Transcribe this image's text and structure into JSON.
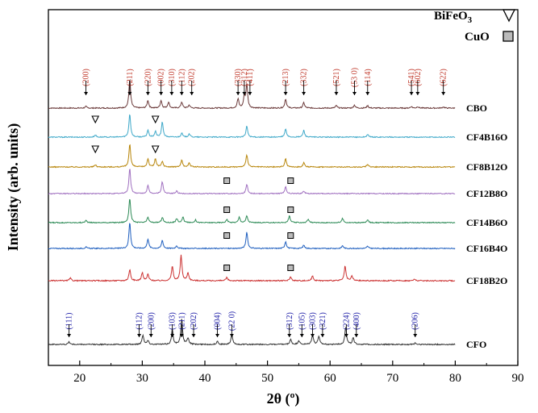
{
  "chart_data": {
    "type": "line",
    "xlabel": "2θ (º)",
    "ylabel": "Intensity (arb. units)",
    "xlim": [
      15,
      90
    ],
    "xticks": [
      20,
      30,
      40,
      50,
      60,
      70,
      80,
      90
    ],
    "x_range_of_data": [
      15,
      80
    ],
    "grid": false,
    "legend": [
      {
        "label": "BiFeO₃",
        "symbol": "triangle-down-open",
        "placement": "top-right"
      },
      {
        "label": "CuO",
        "symbol": "square-gray",
        "placement": "top-right"
      }
    ],
    "series": [
      {
        "name": "CBO",
        "color": "#6b3a3a",
        "peaks": [
          [
            21.0,
            0.05
          ],
          [
            28.0,
            0.95
          ],
          [
            30.9,
            0.25
          ],
          [
            33.0,
            0.25
          ],
          [
            34.2,
            0.2
          ],
          [
            36.3,
            0.2
          ],
          [
            37.5,
            0.1
          ],
          [
            45.3,
            0.3
          ],
          [
            46.3,
            0.35
          ],
          [
            46.7,
            0.75
          ],
          [
            52.9,
            0.3
          ],
          [
            55.8,
            0.18
          ],
          [
            61.0,
            0.08
          ],
          [
            63.9,
            0.1
          ],
          [
            66.0,
            0.08
          ],
          [
            73.0,
            0.05
          ],
          [
            74.0,
            0.05
          ],
          [
            78.1,
            0.04
          ]
        ]
      },
      {
        "name": "CF4B16O",
        "color": "#3fa9c9",
        "peaks": [
          [
            22.5,
            0.08
          ],
          [
            28.0,
            0.85
          ],
          [
            30.9,
            0.25
          ],
          [
            32.1,
            0.2
          ],
          [
            33.2,
            0.55
          ],
          [
            36.3,
            0.15
          ],
          [
            37.5,
            0.12
          ],
          [
            46.7,
            0.4
          ],
          [
            52.9,
            0.3
          ],
          [
            55.8,
            0.25
          ],
          [
            66.0,
            0.1
          ]
        ]
      },
      {
        "name": "CF8B12O",
        "color": "#b8860b",
        "peaks": [
          [
            22.5,
            0.08
          ],
          [
            28.0,
            0.85
          ],
          [
            30.9,
            0.3
          ],
          [
            32.1,
            0.3
          ],
          [
            33.2,
            0.2
          ],
          [
            36.3,
            0.25
          ],
          [
            37.5,
            0.15
          ],
          [
            46.7,
            0.45
          ],
          [
            52.9,
            0.3
          ],
          [
            55.8,
            0.15
          ],
          [
            66.0,
            0.1
          ]
        ]
      },
      {
        "name": "CF12B8O",
        "color": "#a070c0",
        "peaks": [
          [
            28.0,
            0.95
          ],
          [
            30.9,
            0.3
          ],
          [
            33.2,
            0.45
          ],
          [
            35.5,
            0.1
          ],
          [
            46.7,
            0.35
          ],
          [
            52.9,
            0.25
          ],
          [
            55.8,
            0.1
          ]
        ]
      },
      {
        "name": "CF14B6O",
        "color": "#2e8b57",
        "peaks": [
          [
            21.0,
            0.08
          ],
          [
            28.0,
            0.9
          ],
          [
            30.9,
            0.2
          ],
          [
            33.2,
            0.2
          ],
          [
            35.5,
            0.15
          ],
          [
            36.5,
            0.2
          ],
          [
            38.5,
            0.1
          ],
          [
            43.5,
            0.12
          ],
          [
            45.5,
            0.2
          ],
          [
            46.7,
            0.25
          ],
          [
            53.5,
            0.25
          ],
          [
            56.5,
            0.12
          ],
          [
            62.0,
            0.15
          ],
          [
            66.0,
            0.1
          ]
        ]
      },
      {
        "name": "CF16B4O",
        "color": "#1f5fbf",
        "peaks": [
          [
            21.0,
            0.05
          ],
          [
            28.0,
            0.95
          ],
          [
            30.9,
            0.35
          ],
          [
            33.2,
            0.3
          ],
          [
            35.5,
            0.1
          ],
          [
            46.7,
            0.6
          ],
          [
            52.9,
            0.25
          ],
          [
            55.8,
            0.12
          ],
          [
            62.0,
            0.1
          ],
          [
            66.0,
            0.08
          ]
        ]
      },
      {
        "name": "CF18B2O",
        "color": "#cc3333",
        "peaks": [
          [
            18.5,
            0.08
          ],
          [
            28.0,
            0.35
          ],
          [
            30.0,
            0.25
          ],
          [
            30.9,
            0.2
          ],
          [
            34.8,
            0.45
          ],
          [
            36.2,
            0.8
          ],
          [
            37.3,
            0.25
          ],
          [
            43.5,
            0.1
          ],
          [
            53.7,
            0.12
          ],
          [
            57.2,
            0.15
          ],
          [
            62.4,
            0.45
          ],
          [
            63.5,
            0.15
          ],
          [
            73.5,
            0.05
          ]
        ]
      },
      {
        "name": "CFO",
        "color": "#333333",
        "peaks": [
          [
            18.3,
            0.08
          ],
          [
            30.1,
            0.3
          ],
          [
            30.9,
            0.12
          ],
          [
            34.8,
            0.45
          ],
          [
            36.3,
            0.8
          ],
          [
            37.3,
            0.2
          ],
          [
            42.0,
            0.1
          ],
          [
            44.3,
            0.3
          ],
          [
            53.7,
            0.15
          ],
          [
            55.0,
            0.12
          ],
          [
            57.2,
            0.3
          ],
          [
            58.2,
            0.25
          ],
          [
            62.5,
            0.55
          ],
          [
            63.7,
            0.2
          ],
          [
            73.6,
            0.05
          ]
        ]
      }
    ],
    "annotations": {
      "CBO_planes": [
        {
          "label": "(200)",
          "x": 21.0
        },
        {
          "label": "(211)",
          "x": 28.0
        },
        {
          "label": "(220)",
          "x": 30.9
        },
        {
          "label": "(002)",
          "x": 33.0
        },
        {
          "label": "(310)",
          "x": 34.7
        },
        {
          "label": "(112)",
          "x": 36.3
        },
        {
          "label": "(202)",
          "x": 37.9
        },
        {
          "label": "(330)",
          "x": 45.3
        },
        {
          "label": "(312)",
          "x": 46.3
        },
        {
          "label": "(411)",
          "x": 47.2
        },
        {
          "label": "(213)",
          "x": 52.9
        },
        {
          "label": "(332)",
          "x": 55.8
        },
        {
          "label": "(521)",
          "x": 61.0
        },
        {
          "label": "(53 0)",
          "x": 63.9
        },
        {
          "label": "(114)",
          "x": 66.0
        },
        {
          "label": "(541)",
          "x": 73.0
        },
        {
          "label": "(602)",
          "x": 74.0
        },
        {
          "label": "(622)",
          "x": 78.1
        }
      ],
      "CFO_planes": [
        {
          "label": "(111)",
          "x": 18.3
        },
        {
          "label": "(112)",
          "x": 29.5
        },
        {
          "label": "(200)",
          "x": 31.4
        },
        {
          "label": "(103)",
          "x": 34.8
        },
        {
          "label": "(211)",
          "x": 36.3
        },
        {
          "label": "(202)",
          "x": 38.2
        },
        {
          "label": "(004)",
          "x": 42.0
        },
        {
          "label": "(22 0)",
          "x": 44.3
        },
        {
          "label": "(312)",
          "x": 53.5
        },
        {
          "label": "(105)",
          "x": 55.5
        },
        {
          "label": "(303)",
          "x": 57.2
        },
        {
          "label": "(321)",
          "x": 58.8
        },
        {
          "label": "(224)",
          "x": 62.6
        },
        {
          "label": "(400)",
          "x": 64.2
        },
        {
          "label": "(206)",
          "x": 73.6
        }
      ],
      "bifeo3_markers": [
        {
          "series": "CF4B16O",
          "x": 22.5
        },
        {
          "series": "CF4B16O",
          "x": 32.1
        },
        {
          "series": "CF8B12O",
          "x": 22.5
        },
        {
          "series": "CF8B12O",
          "x": 32.1
        }
      ],
      "cuo_markers": [
        {
          "series": "CF12B8O",
          "x": 43.5
        },
        {
          "series": "CF12B8O",
          "x": 53.7
        },
        {
          "series": "CF14B6O",
          "x": 43.5
        },
        {
          "series": "CF14B6O",
          "x": 53.7
        },
        {
          "series": "CF16B4O",
          "x": 43.5
        },
        {
          "series": "CF16B4O",
          "x": 53.7
        },
        {
          "series": "CF18B2O",
          "x": 43.5
        },
        {
          "series": "CF18B2O",
          "x": 53.7
        }
      ]
    }
  }
}
